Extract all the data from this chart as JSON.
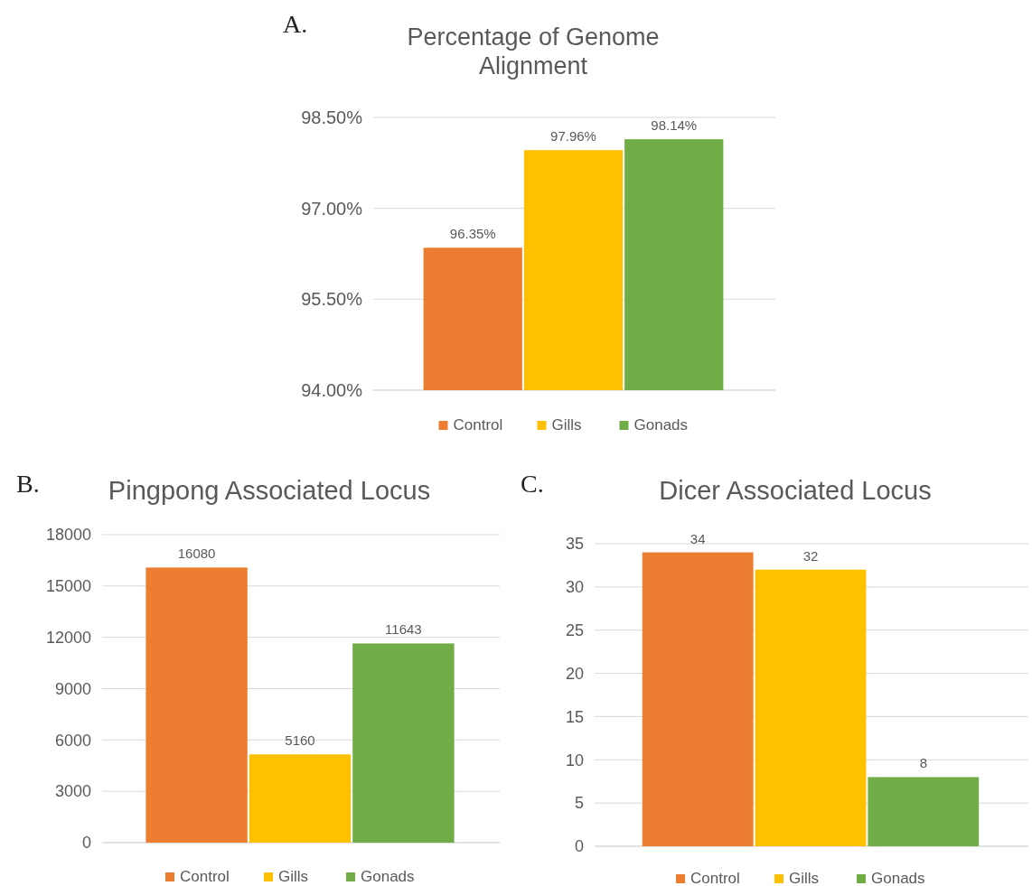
{
  "chart_data": [
    {
      "type": "bar",
      "title": "Percentage of Genome Alignment",
      "annotations": [
        "A."
      ],
      "categories": [
        null
      ],
      "series": [
        {
          "name": "Control",
          "color": "#ed7d31",
          "values": [
            96.35
          ],
          "value_labels": [
            "96.35%"
          ]
        },
        {
          "name": "Gills",
          "color": "#ffc000",
          "values": [
            97.96
          ],
          "value_labels": [
            "97.96%"
          ]
        },
        {
          "name": "Gonads",
          "color": "#70ad47",
          "values": [
            98.14
          ],
          "value_labels": [
            "98.14%"
          ]
        }
      ],
      "ylim": [
        94,
        98.5
      ],
      "yticks": [
        {
          "value": 94,
          "label": "94.00%"
        },
        {
          "value": 95.5,
          "label": "95.50%"
        },
        {
          "value": 97,
          "label": "97.00%"
        },
        {
          "value": 98.5,
          "label": "98.50%"
        }
      ],
      "grid": "y",
      "legend": "bottom"
    },
    {
      "type": "bar",
      "title": "Pingpong Associated Locus",
      "annotations": [
        "B."
      ],
      "categories": [
        null
      ],
      "series": [
        {
          "name": "Control",
          "color": "#ed7d31",
          "values": [
            16080
          ]
        },
        {
          "name": "Gills",
          "color": "#ffc000",
          "values": [
            5160
          ]
        },
        {
          "name": "Gonads",
          "color": "#70ad47",
          "values": [
            11643
          ]
        }
      ],
      "ylim": [
        0,
        18000
      ],
      "yticks": [
        0,
        3000,
        6000,
        9000,
        12000,
        15000,
        18000
      ],
      "grid": "y",
      "legend": "bottom",
      "data_labels": true
    },
    {
      "type": "bar",
      "title": "Dicer Associated Locus",
      "annotations": [
        "C."
      ],
      "categories": [
        null
      ],
      "series": [
        {
          "name": "Control",
          "color": "#ed7d31",
          "values": [
            34
          ]
        },
        {
          "name": "Gills",
          "color": "#ffc000",
          "values": [
            32
          ]
        },
        {
          "name": "Gonads",
          "color": "#70ad47",
          "values": [
            8
          ]
        }
      ],
      "ylim": [
        0,
        35
      ],
      "yticks": [
        0,
        5,
        10,
        15,
        20,
        25,
        30,
        35
      ],
      "grid": "y",
      "legend": "bottom",
      "data_labels": true
    }
  ]
}
